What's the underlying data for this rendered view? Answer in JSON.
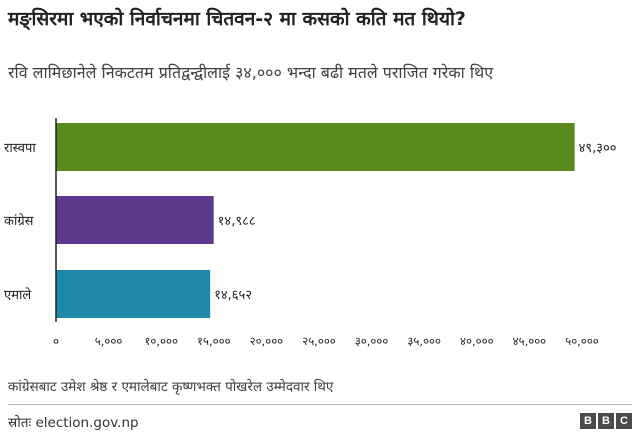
{
  "title": "मङ्सिरमा भएको निर्वाचनमा चितवन-२ मा कसको कति मत थियो?",
  "subtitle": "रवि लामिछानेले निकटतम प्रतिद्वन्द्वीलाई ३४,००० भन्दा बढी मतले पराजित गरेका थिए",
  "note": "कांग्रेसबाट उमेश श्रेष्ठ र एमालेबाट कृष्णभक्त पोखरेल उम्मेदवार थिए",
  "source": "स्रोतः election.gov.np",
  "logo": [
    "B",
    "B",
    "C"
  ],
  "chart_data": {
    "type": "bar",
    "orientation": "horizontal",
    "categories": [
      "रास्वपा",
      "कांग्रेस",
      "एमाले"
    ],
    "values": [
      49300,
      14988,
      14652
    ],
    "value_labels": [
      "४९,३००",
      "१४,९८८",
      "१४,६५२"
    ],
    "colors": [
      "#588a1e",
      "#5b3a8c",
      "#1d88a8"
    ],
    "xlim": [
      0,
      50000
    ],
    "xticks": [
      0,
      5000,
      10000,
      15000,
      20000,
      25000,
      30000,
      35000,
      40000,
      45000,
      50000
    ],
    "xtick_labels": [
      "०",
      "५,०००",
      "१०,०००",
      "१५,०००",
      "२०,०००",
      "२५,०००",
      "३०,०००",
      "३५,०००",
      "४०,०००",
      "४५,०००",
      "५०,०००"
    ],
    "grid": false,
    "legend": "none"
  }
}
